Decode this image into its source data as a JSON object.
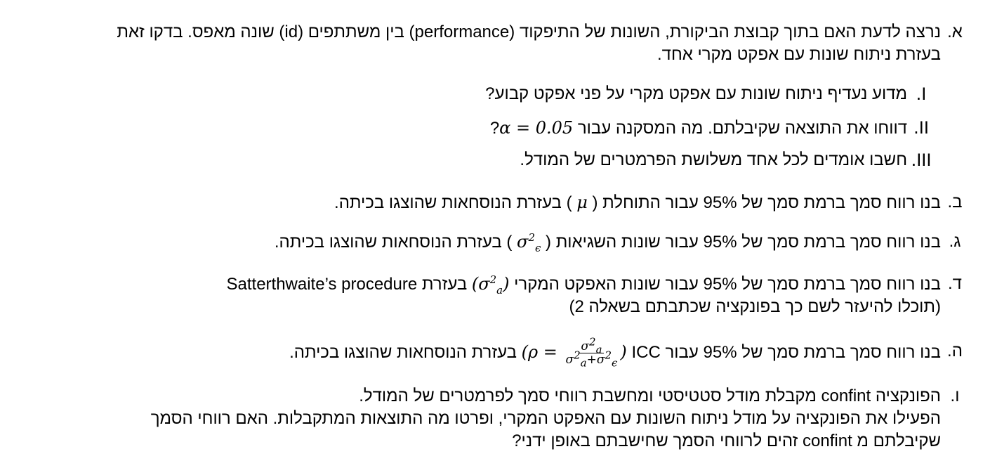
{
  "questions": [
    {
      "marker": "א.",
      "lines": [
        "נרצה לדעת האם בתוך קבוצת הביקורת, השונות של התיפקוד (performance) בין משתתפים (id) שונה מאפס. בדקו זאת",
        "בעזרת ניתוח שונות עם אפקט מקרי אחד."
      ],
      "subitems": [
        {
          "num": "I.",
          "text": "מדוע נעדיף ניתוח שונות עם אפקט מקרי על פני אפקט קבוע?"
        },
        {
          "num": "II.",
          "text_before": "דווחו את התוצאה שקיבלתם.  מה המסקנה עבור ",
          "math": "α = 0.05",
          "text_after": "?"
        },
        {
          "num": "III.",
          "text": "חשבו אומדים לכל אחד משלושת הפרמטרים של המודל."
        }
      ]
    },
    {
      "marker": "ב.",
      "text_before": "בנו רווח סמך ברמת סמך של 95% עבור התוחלת ( ",
      "math": "μ",
      "text_after": " ) בעזרת הנוסחאות שהוצגו בכיתה."
    },
    {
      "marker": "ג.",
      "text_before": "בנו רווח סמך ברמת סמך של 95% עבור שונות השגיאות ( ",
      "math": "σ",
      "text_after": " ) בעזרת הנוסחאות שהוצגו בכיתה."
    },
    {
      "marker": "ד.",
      "line1_before": "בנו רווח סמך ברמת סמך של 95% עבור שונות האפקט המקרי ",
      "math": "σ",
      "line1_after": " בעזרת Satterthwaite’s procedure",
      "line2": "(תוכלו להיעזר לשם כך בפונקציה שכתבתם בשאלה 2)"
    },
    {
      "marker": "ה.",
      "text_before": "בנו רווח סמך ברמת סמך של 95% עבור ICC ",
      "math_rho": "ρ =",
      "text_after": " בעזרת הנוסחאות שהוצגו בכיתה."
    },
    {
      "marker": "ו.",
      "lines": [
        "הפונקציה confint מקבלת מודל סטטיסטי ומחשבת רווחי סמך לפרמטרים של המודל.",
        "הפעילו את הפונקציה על מודל ניתוח השונות עם האפקט המקרי, ופרטו מה התוצאות המתקבלות.  האם רווחי הסמך",
        "שקיבלתם מ confint זהים לרווחי הסמך שחישבתם באופן ידני?"
      ]
    }
  ]
}
